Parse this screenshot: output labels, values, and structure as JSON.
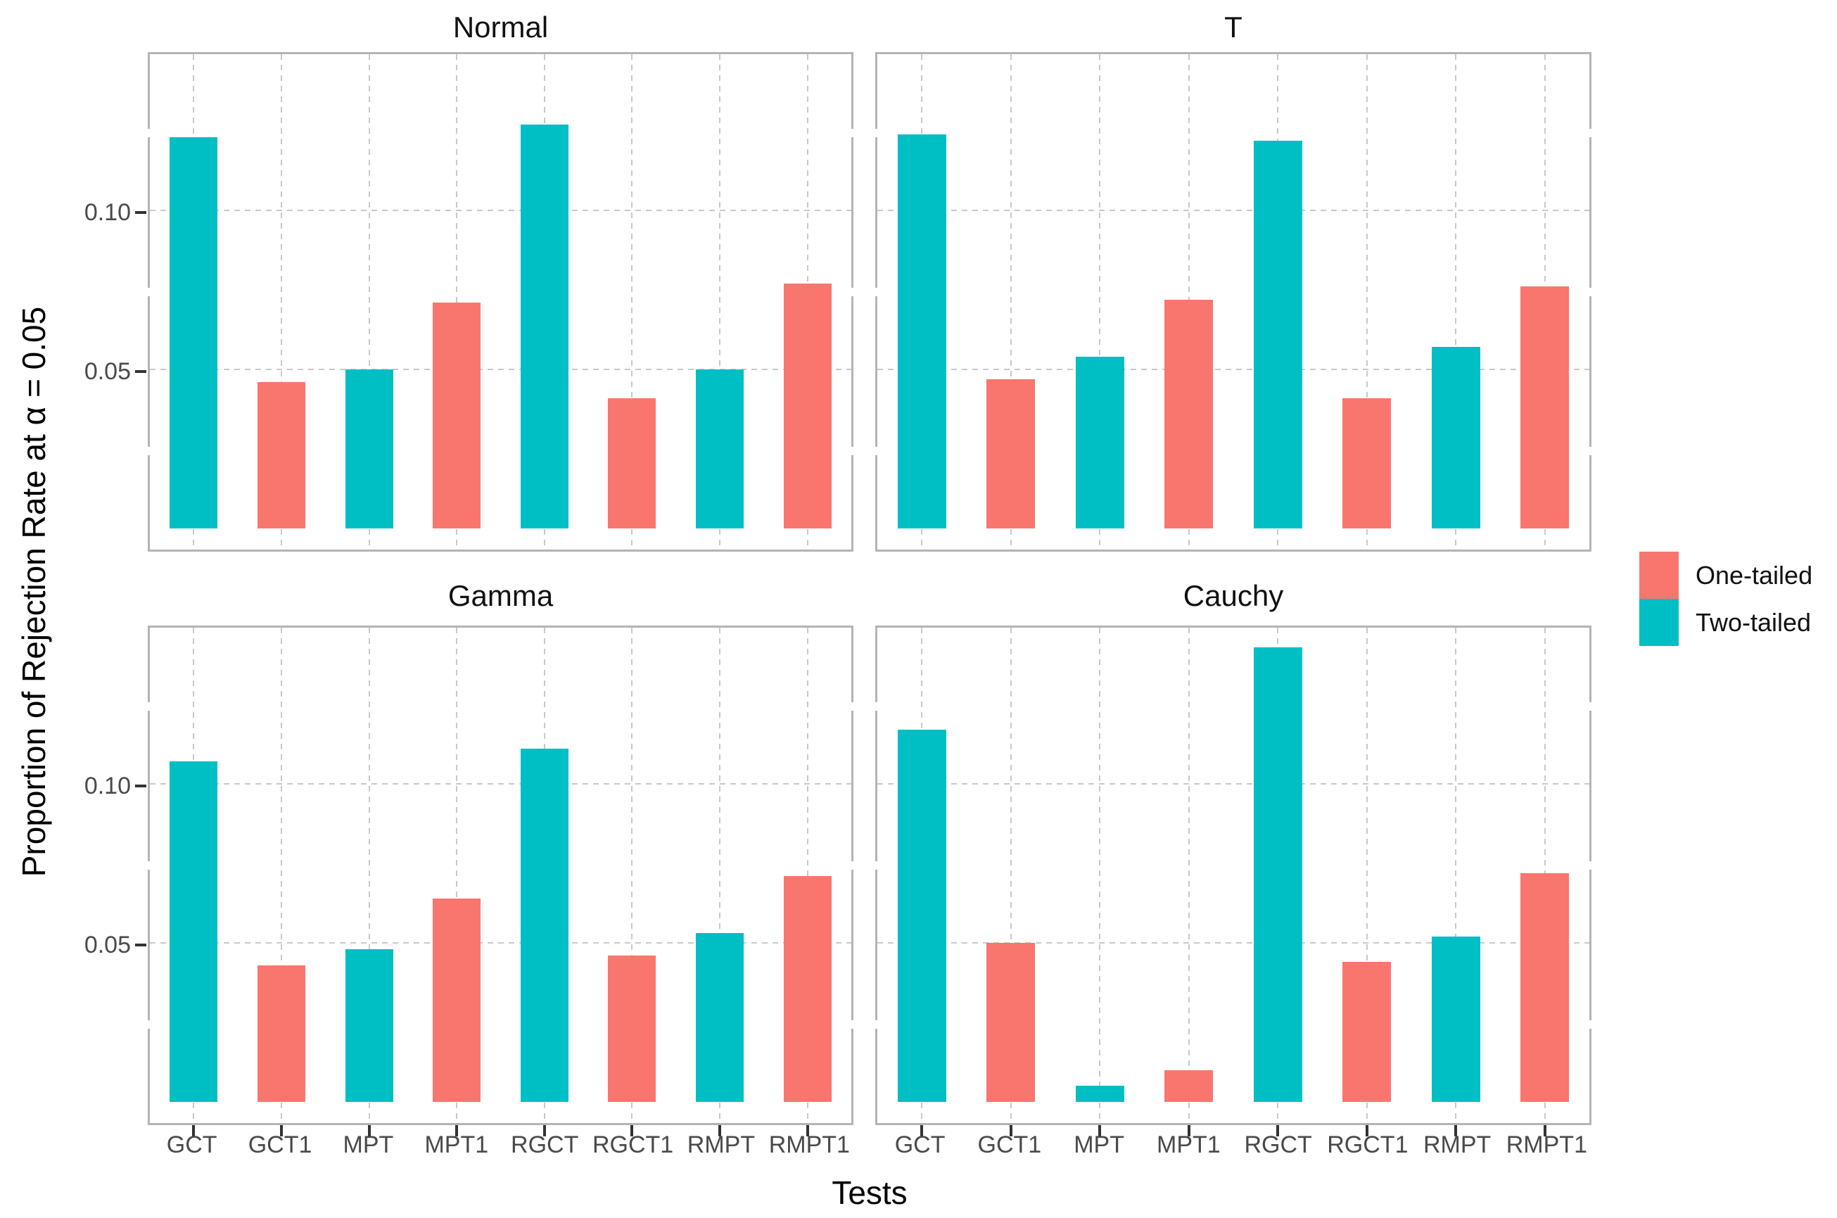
{
  "figure": {
    "background": "#ffffff",
    "panel_border_color": "#b4b4b4",
    "gridline_color": "#c9c9c9",
    "tick_color": "#333333",
    "tick_label_color": "#4a4a4a"
  },
  "yaxis": {
    "title": "Proportion of Rejection Rate at α = 0.05",
    "ticks": [
      {
        "label": "0.10",
        "value": 0.1
      },
      {
        "label": "0.05",
        "value": 0.05
      }
    ],
    "minor_tick_values": [
      0.025,
      0.075,
      0.125
    ]
  },
  "xaxis": {
    "title": "Tests"
  },
  "legend": {
    "items": [
      {
        "label": "One-tailed",
        "color": "#F8766D"
      },
      {
        "label": "Two-tailed",
        "color": "#00BFC4"
      }
    ]
  },
  "chart_data": {
    "type": "bar",
    "title": "",
    "xlabel": "Tests",
    "ylabel": "Proportion of Rejection Rate at α = 0.05",
    "ylim": [
      0,
      0.155
    ],
    "ytick_values": [
      0.05,
      0.1
    ],
    "grid": "dashed major gridlines, white background, light gray panel border",
    "legend_position": "right",
    "categories": [
      "GCT",
      "GCT1",
      "MPT",
      "MPT1",
      "RGCT",
      "RGCT1",
      "RMPT",
      "RMPT1"
    ],
    "series_names": [
      "One-tailed",
      "Two-tailed"
    ],
    "series_by_category": [
      "Two-tailed",
      "One-tailed",
      "Two-tailed",
      "One-tailed",
      "Two-tailed",
      "One-tailed",
      "Two-tailed",
      "One-tailed"
    ],
    "series_colors": {
      "One-tailed": "#F8766D",
      "Two-tailed": "#00BFC4"
    },
    "facets": [
      {
        "title": "Normal",
        "values": [
          0.123,
          0.046,
          0.05,
          0.071,
          0.127,
          0.041,
          0.05,
          0.077
        ]
      },
      {
        "title": "T",
        "values": [
          0.124,
          0.047,
          0.054,
          0.072,
          0.122,
          0.041,
          0.057,
          0.076
        ]
      },
      {
        "title": "Gamma",
        "values": [
          0.107,
          0.043,
          0.048,
          0.064,
          0.111,
          0.046,
          0.053,
          0.071
        ]
      },
      {
        "title": "Cauchy",
        "values": [
          0.117,
          0.05,
          0.005,
          0.01,
          0.143,
          0.044,
          0.052,
          0.072
        ]
      }
    ]
  }
}
